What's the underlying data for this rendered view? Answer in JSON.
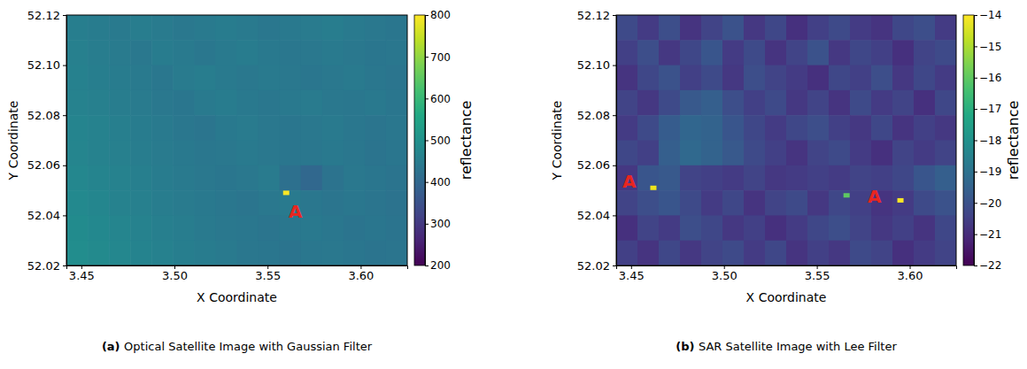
{
  "chart_data": [
    {
      "type": "heatmap",
      "xlabel": "X Coordinate",
      "ylabel": "Y Coordinate",
      "xlim": [
        3.442,
        3.625
      ],
      "ylim": [
        52.02,
        52.12
      ],
      "xticks": [
        3.45,
        {
          "value": 3.5,
          "label": "3.50"
        },
        3.55,
        {
          "value": 3.6,
          "label": "3.60"
        }
      ],
      "yticks": [
        52.02,
        52.04,
        52.06,
        52.08,
        {
          "value": 52.1,
          "label": "52.10"
        },
        52.12
      ],
      "cells": [
        [
          455,
          450,
          445,
          452,
          448,
          440,
          446,
          450,
          444,
          438,
          442,
          447,
          451,
          445,
          440,
          436
        ],
        [
          458,
          452,
          447,
          441,
          450,
          446,
          439,
          444,
          449,
          443,
          437,
          441,
          446,
          440,
          435,
          439
        ],
        [
          462,
          455,
          450,
          444,
          438,
          447,
          452,
          445,
          440,
          446,
          441,
          436,
          440,
          444,
          438,
          433
        ],
        [
          466,
          459,
          452,
          447,
          441,
          436,
          445,
          450,
          443,
          438,
          443,
          447,
          441,
          437,
          442,
          436
        ],
        [
          470,
          463,
          456,
          450,
          444,
          439,
          434,
          443,
          448,
          441,
          436,
          440,
          445,
          439,
          434,
          438
        ],
        [
          474,
          467,
          460,
          453,
          447,
          442,
          437,
          441,
          446,
          440,
          435,
          438,
          443,
          437,
          432,
          436
        ],
        [
          478,
          471,
          463,
          456,
          450,
          445,
          440,
          436,
          441,
          447,
          418,
          400,
          428,
          440,
          435,
          431
        ],
        [
          482,
          475,
          467,
          460,
          453,
          448,
          443,
          438,
          434,
          440,
          445,
          439,
          434,
          438,
          433,
          429
        ],
        [
          488,
          480,
          472,
          464,
          457,
          451,
          446,
          441,
          437,
          433,
          439,
          443,
          437,
          432,
          436,
          431
        ],
        [
          492,
          485,
          477,
          469,
          461,
          455,
          449,
          444,
          439,
          435,
          431,
          437,
          441,
          435,
          430,
          434
        ]
      ],
      "spots": [
        {
          "x": 3.56,
          "y": 52.049,
          "value": 800
        }
      ],
      "colorbar": {
        "label": "reflectance",
        "range": [
          200,
          800
        ],
        "ticks": [
          200,
          300,
          400,
          500,
          600,
          700,
          800
        ]
      },
      "annotations": [
        {
          "text": "A",
          "x": 3.565,
          "y": 52.041,
          "color": "#e8261f"
        }
      ],
      "caption": {
        "label": "(a)",
        "text": "Optical Satellite Image with Gaussian Filter"
      }
    },
    {
      "type": "heatmap",
      "xlabel": "X Coordinate",
      "ylabel": "Y Coordinate",
      "xlim": [
        3.442,
        3.625
      ],
      "ylim": [
        52.02,
        52.12
      ],
      "xticks": [
        3.45,
        {
          "value": 3.5,
          "label": "3.50"
        },
        3.55,
        {
          "value": 3.6,
          "label": "3.60"
        }
      ],
      "yticks": [
        52.02,
        52.04,
        52.06,
        52.08,
        {
          "value": 52.1,
          "label": "52.10"
        },
        52.12
      ],
      "cells": [
        [
          -20.2,
          -20.6,
          -20.1,
          -20.8,
          -20.4,
          -20.0,
          -20.7,
          -20.3,
          -20.9,
          -20.5,
          -20.2,
          -20.6,
          -20.8,
          -20.3,
          -20.1,
          -20.6
        ],
        [
          -20.5,
          -20.1,
          -20.7,
          -20.3,
          -19.9,
          -20.6,
          -20.2,
          -20.8,
          -20.4,
          -20.0,
          -20.7,
          -20.3,
          -20.5,
          -20.9,
          -20.4,
          -20.2
        ],
        [
          -20.8,
          -20.3,
          -20.0,
          -20.5,
          -20.2,
          -20.7,
          -20.1,
          -20.4,
          -20.6,
          -20.9,
          -20.3,
          -20.5,
          -20.1,
          -20.7,
          -20.3,
          -20.6
        ],
        [
          -20.4,
          -20.7,
          -20.2,
          -19.8,
          -19.6,
          -20.1,
          -20.5,
          -20.2,
          -20.7,
          -20.4,
          -20.8,
          -20.2,
          -20.6,
          -20.4,
          -20.9,
          -20.3
        ],
        [
          -20.6,
          -20.2,
          -19.7,
          -19.4,
          -19.5,
          -19.9,
          -20.3,
          -20.6,
          -20.3,
          -20.1,
          -20.5,
          -20.7,
          -20.3,
          -20.8,
          -20.5,
          -20.7
        ],
        [
          -20.3,
          -20.5,
          -19.6,
          -19.3,
          -19.5,
          -19.8,
          -20.2,
          -20.5,
          -20.8,
          -20.4,
          -20.2,
          -20.6,
          -20.9,
          -20.4,
          -20.6,
          -20.4
        ],
        [
          -20.7,
          -19.9,
          -19.8,
          -20.4,
          -20.5,
          -20.6,
          -20.4,
          -20.7,
          -20.6,
          -20.5,
          -20.6,
          -20.4,
          -20.5,
          -20.3,
          -19.9,
          -19.6
        ],
        [
          -20.4,
          -20.1,
          -19.9,
          -20.2,
          -20.6,
          -20.3,
          -20.8,
          -20.4,
          -20.2,
          -20.7,
          -20.3,
          -20.5,
          -20.8,
          -20.6,
          -20.2,
          -20.0
        ],
        [
          -20.9,
          -20.4,
          -20.6,
          -20.1,
          -20.3,
          -20.7,
          -20.5,
          -20.9,
          -20.6,
          -20.3,
          -20.1,
          -20.4,
          -20.7,
          -20.5,
          -20.8,
          -20.3
        ],
        [
          -20.5,
          -20.8,
          -20.3,
          -20.7,
          -20.4,
          -20.2,
          -20.6,
          -20.3,
          -20.8,
          -20.5,
          -20.7,
          -20.2,
          -20.4,
          -20.9,
          -20.6,
          -20.4
        ]
      ],
      "spots": [
        {
          "x": 3.462,
          "y": 52.051,
          "value": -14.2
        },
        {
          "x": 3.566,
          "y": 52.048,
          "value": -16.0
        },
        {
          "x": 3.595,
          "y": 52.046,
          "value": -14.0
        }
      ],
      "colorbar": {
        "label": "reflectance",
        "range": [
          -22,
          -14
        ],
        "ticks": [
          {
            "value": -22,
            "label": "−22"
          },
          {
            "value": -21,
            "label": "−21"
          },
          {
            "value": -20,
            "label": "−20"
          },
          {
            "value": -19,
            "label": "−19"
          },
          {
            "value": -18,
            "label": "−18"
          },
          {
            "value": -17,
            "label": "−17"
          },
          {
            "value": -16,
            "label": "−16"
          },
          {
            "value": -15,
            "label": "−15"
          },
          {
            "value": -14,
            "label": "−14"
          }
        ]
      },
      "annotations": [
        {
          "text": "A",
          "x": 3.449,
          "y": 52.053,
          "color": "#e8261f"
        },
        {
          "text": "A",
          "x": 3.581,
          "y": 52.047,
          "color": "#e8261f"
        }
      ],
      "caption": {
        "label": "(b)",
        "text": "SAR Satellite Image with Lee Filter"
      }
    }
  ]
}
